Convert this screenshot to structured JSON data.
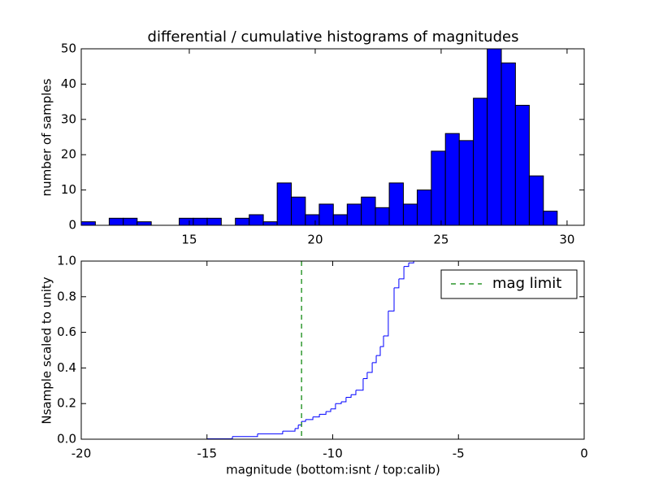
{
  "chart_data": [
    {
      "type": "histogram",
      "title": "differential / cumulative histograms of magnitudes",
      "ylabel": "number of samples",
      "bins": [
        10.71,
        11.27,
        11.82,
        12.38,
        12.93,
        13.49,
        14.05,
        14.6,
        15.16,
        15.71,
        16.27,
        16.83,
        17.38,
        17.94,
        18.49,
        19.05,
        19.61,
        20.16,
        20.72,
        21.27,
        21.83,
        22.39,
        22.94,
        23.5,
        24.05,
        24.61,
        25.17,
        25.72,
        26.28,
        26.83,
        27.39,
        27.95,
        28.5,
        29.06,
        29.61
      ],
      "values": [
        1,
        0,
        2,
        2,
        1,
        0,
        0,
        2,
        2,
        2,
        0,
        2,
        3,
        1,
        12,
        8,
        3,
        6,
        3,
        6,
        8,
        5,
        12,
        6,
        10,
        21,
        26,
        24,
        36,
        50,
        46,
        34,
        14,
        4
      ],
      "color": "#0000ff",
      "xlim": [
        10.71,
        30.68
      ],
      "xticks": [
        15,
        20,
        25,
        30
      ],
      "ylim": [
        0,
        50
      ],
      "yticks": [
        0,
        10,
        20,
        30,
        40,
        50
      ]
    },
    {
      "type": "step",
      "xlabel": "magnitude (bottom:isnt / top:calib)",
      "ylabel": "Nsample scaled to unity",
      "x": [
        -20,
        -14.99,
        -13.99,
        -12.99,
        -11.99,
        -11.5,
        -11.37,
        -11.24,
        -11.08,
        -10.79,
        -10.53,
        -10.27,
        -10.08,
        -9.89,
        -9.66,
        -9.47,
        -9.27,
        -9.08,
        -8.79,
        -8.63,
        -8.43,
        -8.27,
        -8.11,
        -7.98,
        -7.79,
        -7.56,
        -7.37,
        -7.17,
        -6.98,
        -6.78,
        0
      ],
      "series": [
        {
          "color": "#0000ff",
          "values": [
            0,
            0.002,
            0.015,
            0.03,
            0.045,
            0.06,
            0.08,
            0.1,
            0.11,
            0.125,
            0.14,
            0.155,
            0.17,
            0.2,
            0.21,
            0.235,
            0.25,
            0.275,
            0.34,
            0.375,
            0.43,
            0.47,
            0.52,
            0.58,
            0.72,
            0.85,
            0.9,
            0.97,
            0.99,
            1.0,
            1.0
          ]
        }
      ],
      "reference_lines": [
        {
          "name": "mag limit",
          "x": -11.24,
          "color": "#008000",
          "style": "dashed"
        }
      ],
      "legend": "upper right",
      "xlim": [
        -20,
        0
      ],
      "xticks": [
        -20,
        -15,
        -10,
        -5,
        0
      ],
      "ylim": [
        0,
        1
      ],
      "yticks": [
        {
          "value": 0,
          "label": "0.0"
        },
        0.2,
        0.4,
        0.6,
        0.8,
        {
          "value": 1,
          "label": "1.0"
        }
      ]
    }
  ]
}
